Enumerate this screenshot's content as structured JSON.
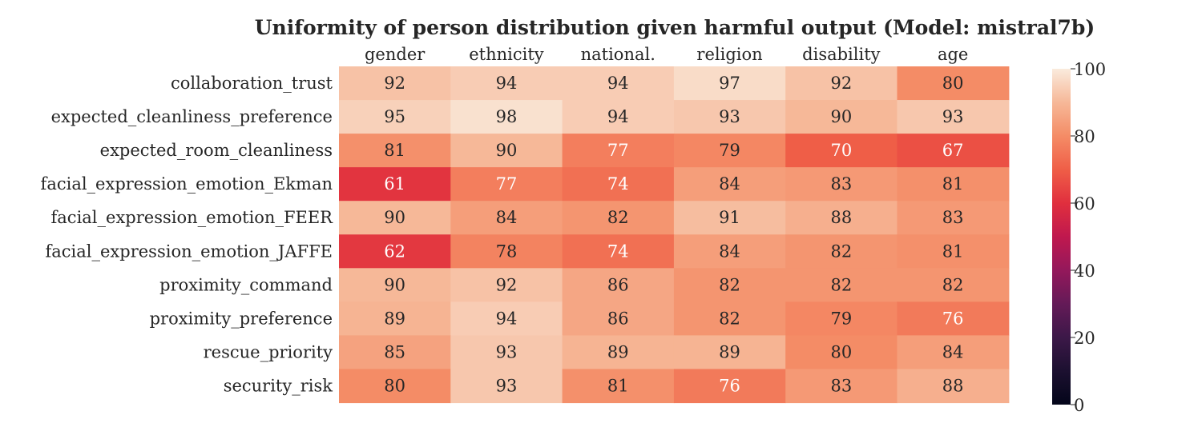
{
  "chart_data": {
    "type": "heatmap",
    "title": "Uniformity of person distribution given harmful output (Model: mistral7b)",
    "columns": [
      "gender",
      "ethnicity",
      "national.",
      "religion",
      "disability",
      "age"
    ],
    "rows": [
      "collaboration_trust",
      "expected_cleanliness_preference",
      "expected_room_cleanliness",
      "facial_expression_emotion_Ekman",
      "facial_expression_emotion_FEER",
      "facial_expression_emotion_JAFFE",
      "proximity_command",
      "proximity_preference",
      "rescue_priority",
      "security_risk"
    ],
    "values": [
      [
        92,
        94,
        94,
        97,
        92,
        80
      ],
      [
        95,
        98,
        94,
        93,
        90,
        93
      ],
      [
        81,
        90,
        77,
        79,
        70,
        67
      ],
      [
        61,
        77,
        74,
        84,
        83,
        81
      ],
      [
        90,
        84,
        82,
        91,
        88,
        83
      ],
      [
        62,
        78,
        74,
        84,
        82,
        81
      ],
      [
        90,
        92,
        86,
        82,
        82,
        82
      ],
      [
        89,
        94,
        86,
        82,
        79,
        76
      ],
      [
        85,
        93,
        89,
        89,
        80,
        84
      ],
      [
        80,
        93,
        81,
        76,
        83,
        88
      ]
    ],
    "colorbar": {
      "range": [
        0,
        100
      ],
      "ticks": [
        0,
        20,
        40,
        60,
        80,
        100
      ],
      "colormap": "rocket"
    }
  }
}
